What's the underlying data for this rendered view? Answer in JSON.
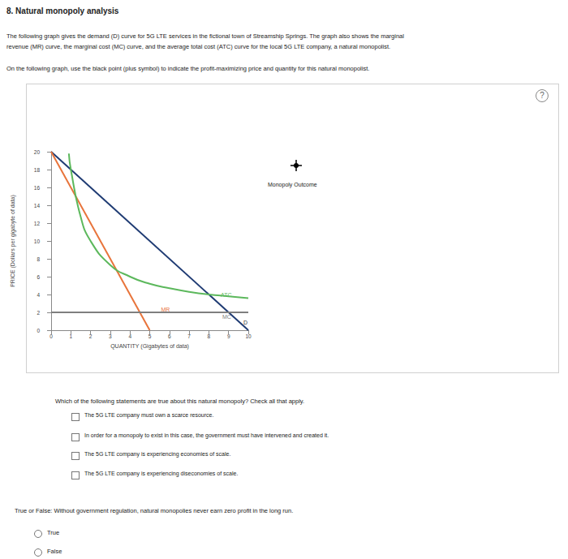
{
  "page": {
    "title": "8. Natural monopoly analysis",
    "intro": [
      "The following graph gives the demand (D) curve for 5G LTE services in the fictional town of Streamship Springs. The graph also shows the marginal",
      "revenue (MR) curve, the marginal cost (MC) curve, and the average total cost (ATC) curve for the local 5G LTE company, a natural monopolist."
    ],
    "instruction": "On the following graph, use the black point (plus symbol) to indicate the profit-maximizing price and quantity for this natural monopolist.",
    "help": "?",
    "tool_label": "Monopoly Outcome",
    "question1": "Which of the following statements are true about this natural monopoly? Check all that apply.",
    "options1": [
      "The 5G LTE company must own a scarce resource.",
      "In order for a monopoly to exist in this case, the government must have intervened and created it.",
      "The 5G LTE company is experiencing economies of scale.",
      "The 5G LTE company is experiencing diseconomies of scale."
    ],
    "question2": "True or False: Without government regulation, natural monopolies never earn zero profit in the long run.",
    "options2": [
      "True",
      "False"
    ]
  },
  "chart_data": {
    "type": "line",
    "x_label": "QUANTITY (Gigabytes of data)",
    "y_label": "PRICE (Dollars per gigabyte of data)",
    "xlim": [
      0,
      10
    ],
    "ylim": [
      0,
      20
    ],
    "xticks": [
      0,
      1,
      2,
      3,
      4,
      5,
      6,
      7,
      8,
      9,
      10
    ],
    "yticks": [
      0,
      2,
      4,
      6,
      8,
      10,
      12,
      14,
      16,
      18,
      20
    ],
    "grid": false,
    "series": [
      {
        "name": "D",
        "color": "#1f3b73",
        "x": [
          0,
          10
        ],
        "values": [
          20,
          0
        ]
      },
      {
        "name": "MR",
        "color": "#e8743b",
        "x": [
          0,
          5
        ],
        "values": [
          20,
          0
        ]
      },
      {
        "name": "ATC",
        "color": "#5cb85c",
        "x": [
          0.9,
          1,
          1.5,
          2,
          3,
          4,
          5,
          6,
          7,
          8,
          9,
          10
        ],
        "values": [
          19.8,
          18,
          12.7,
          10,
          7.3,
          6,
          5.2,
          4.7,
          4.3,
          4,
          3.8,
          3.6
        ]
      },
      {
        "name": "MC",
        "color": "#7f7f7f",
        "x": [
          0,
          10
        ],
        "values": [
          2,
          2
        ]
      }
    ]
  }
}
